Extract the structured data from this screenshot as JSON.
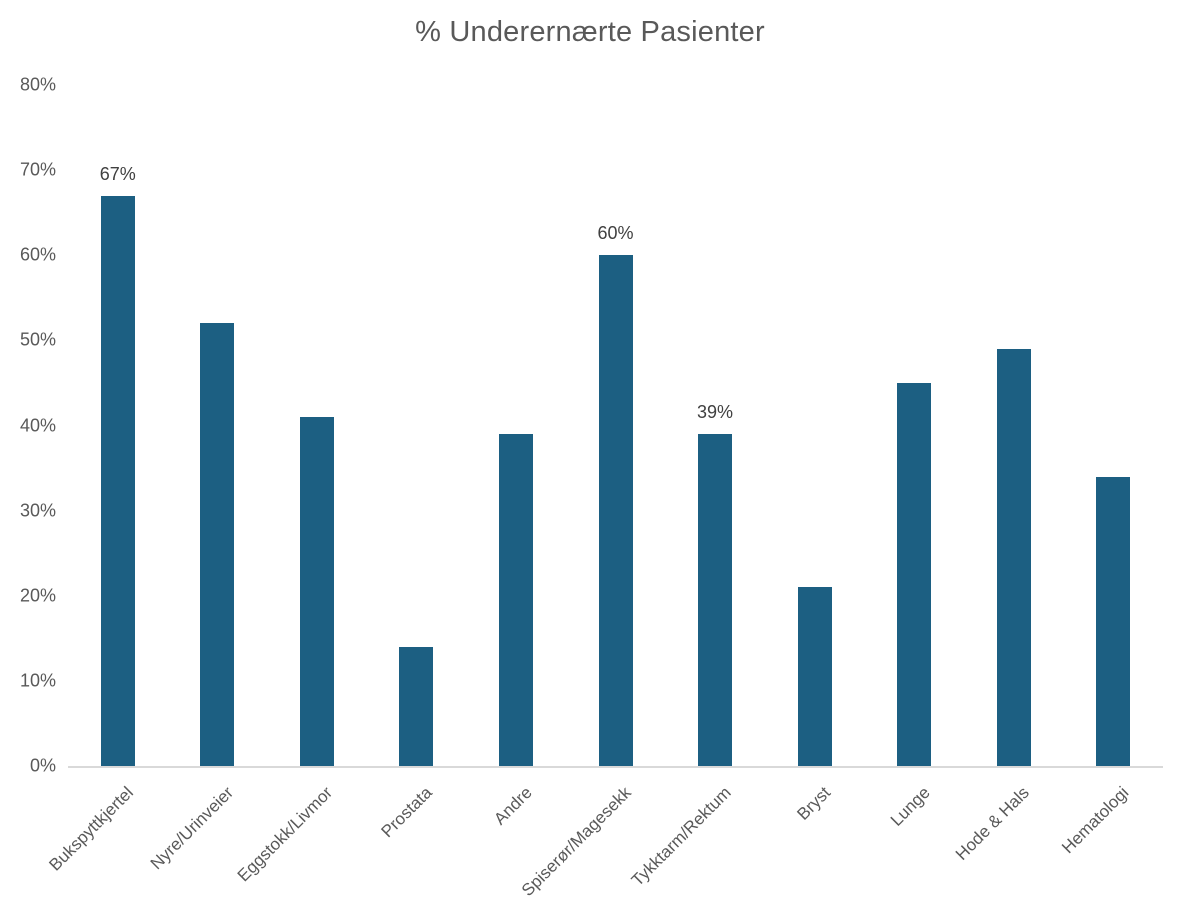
{
  "title": "% Underernærte Pasienter",
  "colors": {
    "background": "#ffffff",
    "bar": "#1c5f82",
    "title_text": "#595959",
    "tick_text": "#595959",
    "data_label_text": "#404040",
    "axis_line": "#d9d9d9"
  },
  "chart_data": {
    "type": "bar",
    "title": "% Underernærte Pasienter",
    "categories": [
      "Bukspyttkjertel",
      "Nyre/Urinveier",
      "Eggstokk/Livmor",
      "Prostata",
      "Andre",
      "Spiserør/Magesekk",
      "Tykktarm/Rektum",
      "Bryst",
      "Lunge",
      "Hode & Hals",
      "Hematologi"
    ],
    "values": [
      67,
      52,
      41,
      14,
      39,
      60,
      39,
      21,
      45,
      49,
      34
    ],
    "data_labels": [
      "67%",
      "",
      "",
      "",
      "",
      "60%",
      "39%",
      "",
      "",
      "",
      ""
    ],
    "xlabel": "",
    "ylabel": "",
    "ylim": [
      0,
      80
    ],
    "ytick_step": 10,
    "ytick_labels": [
      "0%",
      "10%",
      "20%",
      "30%",
      "40%",
      "50%",
      "60%",
      "70%",
      "80%"
    ],
    "grid": false,
    "legend": false,
    "x_label_rotation_deg": 45
  }
}
